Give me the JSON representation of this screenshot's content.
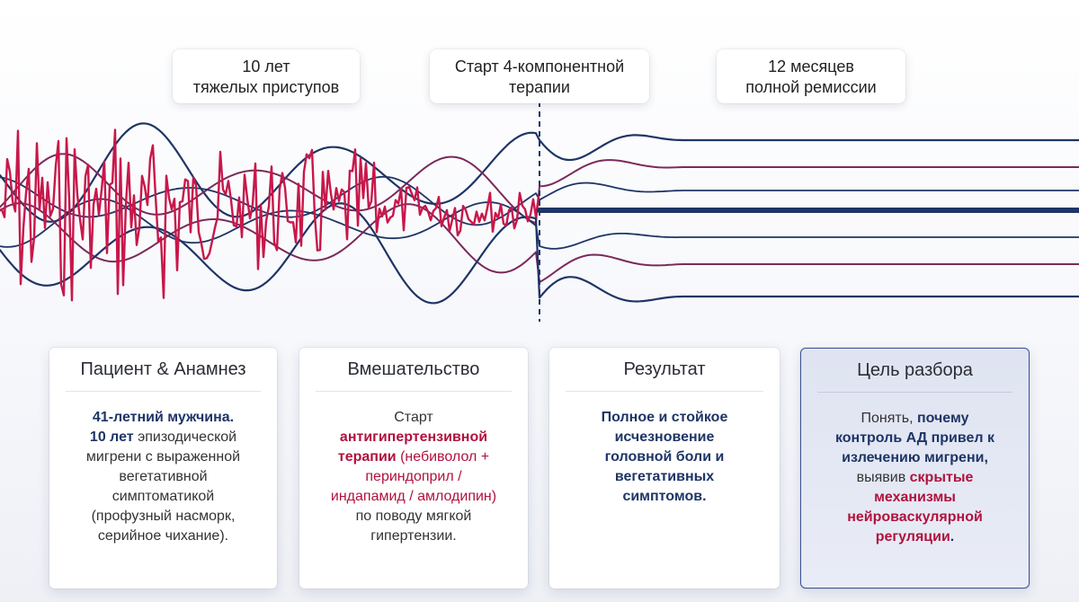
{
  "labels": {
    "left": [
      "10 лет",
      "тяжелых приступов"
    ],
    "middle": [
      "Старт 4-компонентной",
      "терапии"
    ],
    "right": [
      "12 месяцев",
      "полной ремиссии"
    ]
  },
  "colors": {
    "navy": "#1e3566",
    "crimson": "#c8174a",
    "purple": "#7a2a5a"
  },
  "cards": {
    "patient": {
      "title": "Пациент & Анамнез",
      "line1": "41-летний мужчина.",
      "highlight2": "10 лет",
      "rest2": " эпизодической",
      "lines": [
        "мигрени с выраженной",
        "вегетативной",
        "симптоматикой",
        "(профузный насморк,",
        "серийное чихание)."
      ]
    },
    "intervention": {
      "title": "Вмешательство",
      "line1": "Старт",
      "highlight": "антигипертензивной",
      "highlight3": "терапии",
      "rest3": " (небиволол +",
      "line4": "периндоприл /",
      "line5": "индапамид / амлодипин)",
      "line6": "по поводу мягкой",
      "line7": "гипертензии."
    },
    "result": {
      "title": "Результат",
      "lines": [
        "Полное и стойкое",
        "исчезновение",
        "головной боли и",
        "вегетативных",
        "симптомов."
      ]
    },
    "goal": {
      "title": "Цель разбора",
      "l1a": "Понять, ",
      "l1b": "почему",
      "l2": "контроль АД привел к",
      "l3": "излечению мигрени,",
      "l4a": "выявив ",
      "l4b": "скрытые",
      "l5": "механизмы",
      "l6": "нейроваскулярной",
      "l7a": "регуляции",
      "l7b": "."
    }
  }
}
